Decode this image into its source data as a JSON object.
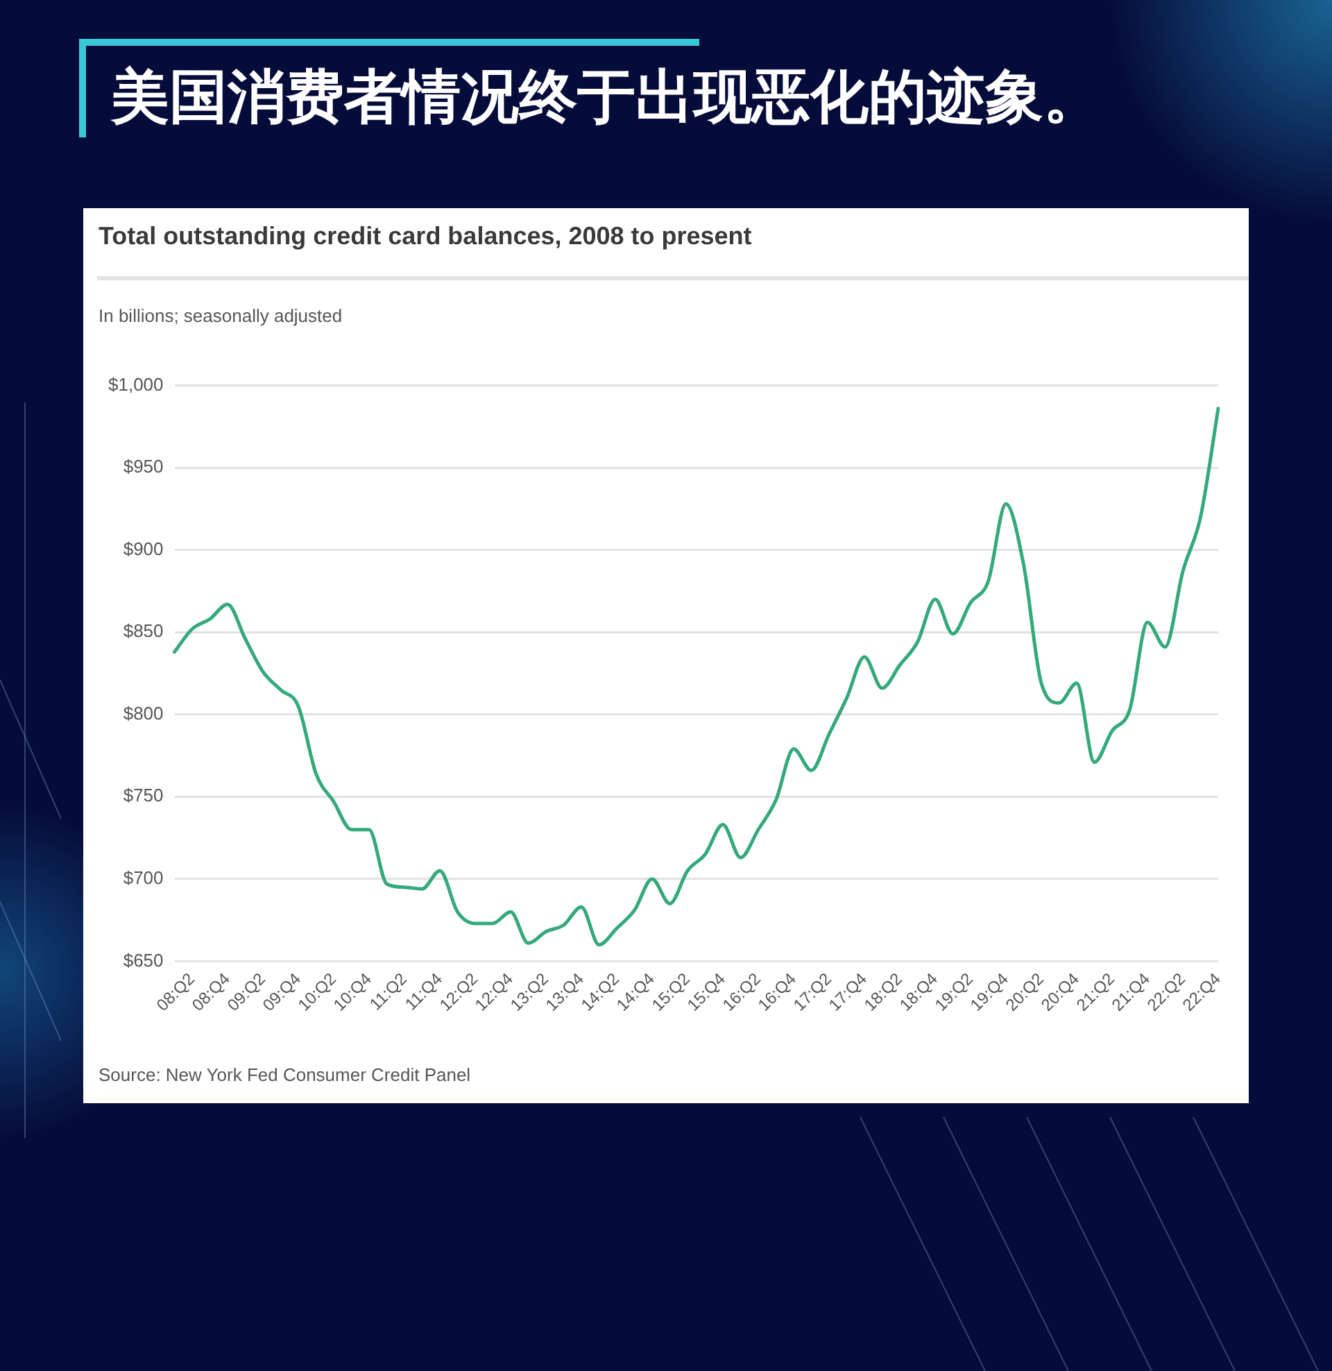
{
  "chart_data": {
    "type": "line",
    "title": "美国消费者情况终于出现恶化的迹象。",
    "subtitle": "Total outstanding credit card balances, 2008 to present",
    "ylabel": "In billions; seasonally adjusted",
    "annotations": [
      "Source: New York Fed Consumer Credit Panel"
    ],
    "categories": [
      null,
      "08:Q2",
      null,
      "08:Q4",
      null,
      "09:Q2",
      null,
      "09:Q4",
      null,
      "10:Q2",
      null,
      "10:Q4",
      null,
      "11:Q2",
      null,
      "11:Q4",
      null,
      "12:Q2",
      null,
      "12:Q4",
      null,
      "13:Q2",
      null,
      "13:Q4",
      null,
      "14:Q2",
      null,
      "14:Q4",
      null,
      "15:Q2",
      null,
      "15:Q4",
      null,
      "16:Q2",
      null,
      "16:Q4",
      null,
      "17:Q2",
      null,
      "17:Q4",
      null,
      "18:Q2",
      null,
      "18:Q4",
      null,
      "19:Q2",
      null,
      "19:Q4",
      null,
      "20:Q2",
      null,
      "20:Q4",
      null,
      "21:Q2",
      null,
      "21:Q4",
      null,
      "22:Q2",
      null,
      "22:Q4"
    ],
    "values": [
      838,
      852,
      858,
      867,
      846,
      826,
      815,
      805,
      764,
      747,
      730,
      730,
      697,
      695,
      694,
      705,
      680,
      673,
      673,
      680,
      661,
      668,
      672,
      683,
      660,
      670,
      681,
      700,
      685,
      705,
      715,
      733,
      713,
      730,
      748,
      779,
      766,
      788,
      810,
      835,
      816,
      830,
      844,
      870,
      849,
      868,
      881,
      928,
      891,
      819,
      807,
      819,
      771,
      790,
      803,
      856,
      841,
      887,
      920,
      986
    ],
    "color": "#34a97b",
    "marker": "none",
    "line_style": "solid",
    "grid": "y",
    "ylim": [
      650,
      1000
    ],
    "yticks": [
      {
        "value": 650,
        "label": "$650"
      },
      {
        "value": 700,
        "label": "$700"
      },
      {
        "value": 750,
        "label": "$750"
      },
      {
        "value": 800,
        "label": "$800"
      },
      {
        "value": 850,
        "label": "$850"
      },
      {
        "value": 900,
        "label": "$900"
      },
      {
        "value": 950,
        "label": "$950"
      },
      {
        "value": 1000,
        "label": "$1,000"
      }
    ]
  }
}
